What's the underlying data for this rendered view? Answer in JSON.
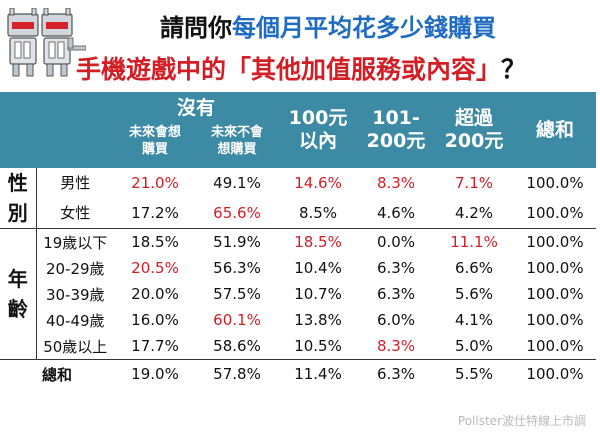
{
  "title": {
    "line1_prefix": "請問你",
    "line1_highlight": "每個月平均花多少錢購買",
    "line2_main": "手機遊戲中的「其他加值服務或內容」",
    "line2_qmark": "？"
  },
  "colors": {
    "header_bg": "#3d8aa4",
    "highlight_red": "#d21f26",
    "title_blue": "#1f6cc2"
  },
  "chart_data": {
    "type": "table",
    "column_headers": {
      "none_group": "沒有",
      "none_future_will": "未來會想購買",
      "none_future_wont": "未來不會想購買",
      "under100": "100元以內",
      "r101_200": "101-200元",
      "over200": "超過200元",
      "total": "總和"
    },
    "header_lines": {
      "none_future_will": [
        "未來會想",
        "購買"
      ],
      "none_future_wont": [
        "未來不會",
        "想購買"
      ],
      "under100": [
        "100元",
        "以內"
      ],
      "r101_200": [
        "101-",
        "200元"
      ],
      "over200": [
        "超過",
        "200元"
      ]
    },
    "groups": [
      {
        "label": "性別",
        "label_chars": [
          "性",
          "別"
        ],
        "rows": [
          {
            "label": "男性",
            "values": [
              "21.0%",
              "49.1%",
              "14.6%",
              "8.3%",
              "7.1%",
              "100.0%"
            ],
            "highlight": [
              0,
              2,
              3,
              4
            ]
          },
          {
            "label": "女性",
            "values": [
              "17.2%",
              "65.6%",
              "8.5%",
              "4.6%",
              "4.2%",
              "100.0%"
            ],
            "highlight": [
              1
            ]
          }
        ]
      },
      {
        "label": "年齡",
        "label_chars": [
          "年",
          "齡"
        ],
        "rows": [
          {
            "label": "19歲以下",
            "values": [
              "18.5%",
              "51.9%",
              "18.5%",
              "0.0%",
              "11.1%",
              "100.0%"
            ],
            "highlight": [
              2,
              4
            ]
          },
          {
            "label": "20-29歲",
            "values": [
              "20.5%",
              "56.3%",
              "10.4%",
              "6.3%",
              "6.6%",
              "100.0%"
            ],
            "highlight": [
              0
            ]
          },
          {
            "label": "30-39歲",
            "values": [
              "20.0%",
              "57.5%",
              "10.7%",
              "6.3%",
              "5.6%",
              "100.0%"
            ],
            "highlight": []
          },
          {
            "label": "40-49歲",
            "values": [
              "16.0%",
              "60.1%",
              "13.8%",
              "6.0%",
              "4.1%",
              "100.0%"
            ],
            "highlight": [
              1
            ]
          },
          {
            "label": "50歲以上",
            "values": [
              "17.7%",
              "58.6%",
              "10.5%",
              "8.3%",
              "5.0%",
              "100.0%"
            ],
            "highlight": [
              3
            ]
          }
        ]
      }
    ],
    "total_row": {
      "label": "總和",
      "values": [
        "19.0%",
        "57.8%",
        "11.4%",
        "6.3%",
        "5.5%",
        "100.0%"
      ]
    }
  },
  "source": "Pollster波仕特線上市調"
}
